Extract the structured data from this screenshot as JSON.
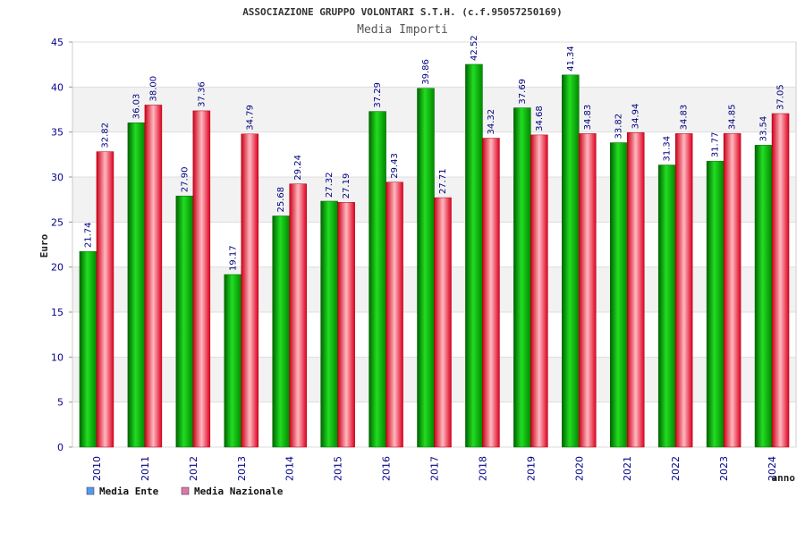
{
  "chart_data": {
    "type": "bar",
    "title": "ASSOCIAZIONE GRUPPO VOLONTARI S.T.H. (c.f.95057250169)",
    "subtitle": "Media Importi",
    "xlabel": "anno",
    "ylabel": "Euro",
    "ylim": [
      0,
      45
    ],
    "yticks": [
      0,
      5,
      10,
      15,
      20,
      25,
      30,
      35,
      40,
      45
    ],
    "grid": true,
    "legend_position": "bottom-left",
    "categories": [
      "2010",
      "2011",
      "2012",
      "2013",
      "2014",
      "2015",
      "2016",
      "2017",
      "2018",
      "2019",
      "2020",
      "2021",
      "2022",
      "2023",
      "2024"
    ],
    "series": [
      {
        "name": "Media Ente",
        "color": "#00b000",
        "legend_color": "#5599ee",
        "values": [
          21.74,
          36.03,
          27.9,
          19.17,
          25.68,
          27.32,
          37.29,
          39.86,
          42.52,
          37.69,
          41.34,
          33.82,
          31.34,
          31.77,
          33.54
        ],
        "labels": [
          "21.74",
          "36.03",
          "27.90",
          "19.17",
          "25.68",
          "27.32",
          "37.29",
          "39.86",
          "42.52",
          "37.69",
          "41.34",
          "33.82",
          "31.34",
          "31.77",
          "33.54"
        ]
      },
      {
        "name": "Media Nazionale",
        "color": "#e8102a",
        "legend_color": "#dd77aa",
        "values": [
          32.82,
          38.0,
          37.36,
          34.79,
          29.24,
          27.19,
          29.43,
          27.71,
          34.32,
          34.68,
          34.83,
          34.94,
          34.83,
          34.85,
          37.05
        ],
        "labels": [
          "32.82",
          "38.00",
          "37.36",
          "34.79",
          "29.24",
          "27.19",
          "29.43",
          "27.71",
          "34.32",
          "34.68",
          "34.83",
          "34.94",
          "34.83",
          "34.85",
          "37.05"
        ]
      }
    ]
  }
}
